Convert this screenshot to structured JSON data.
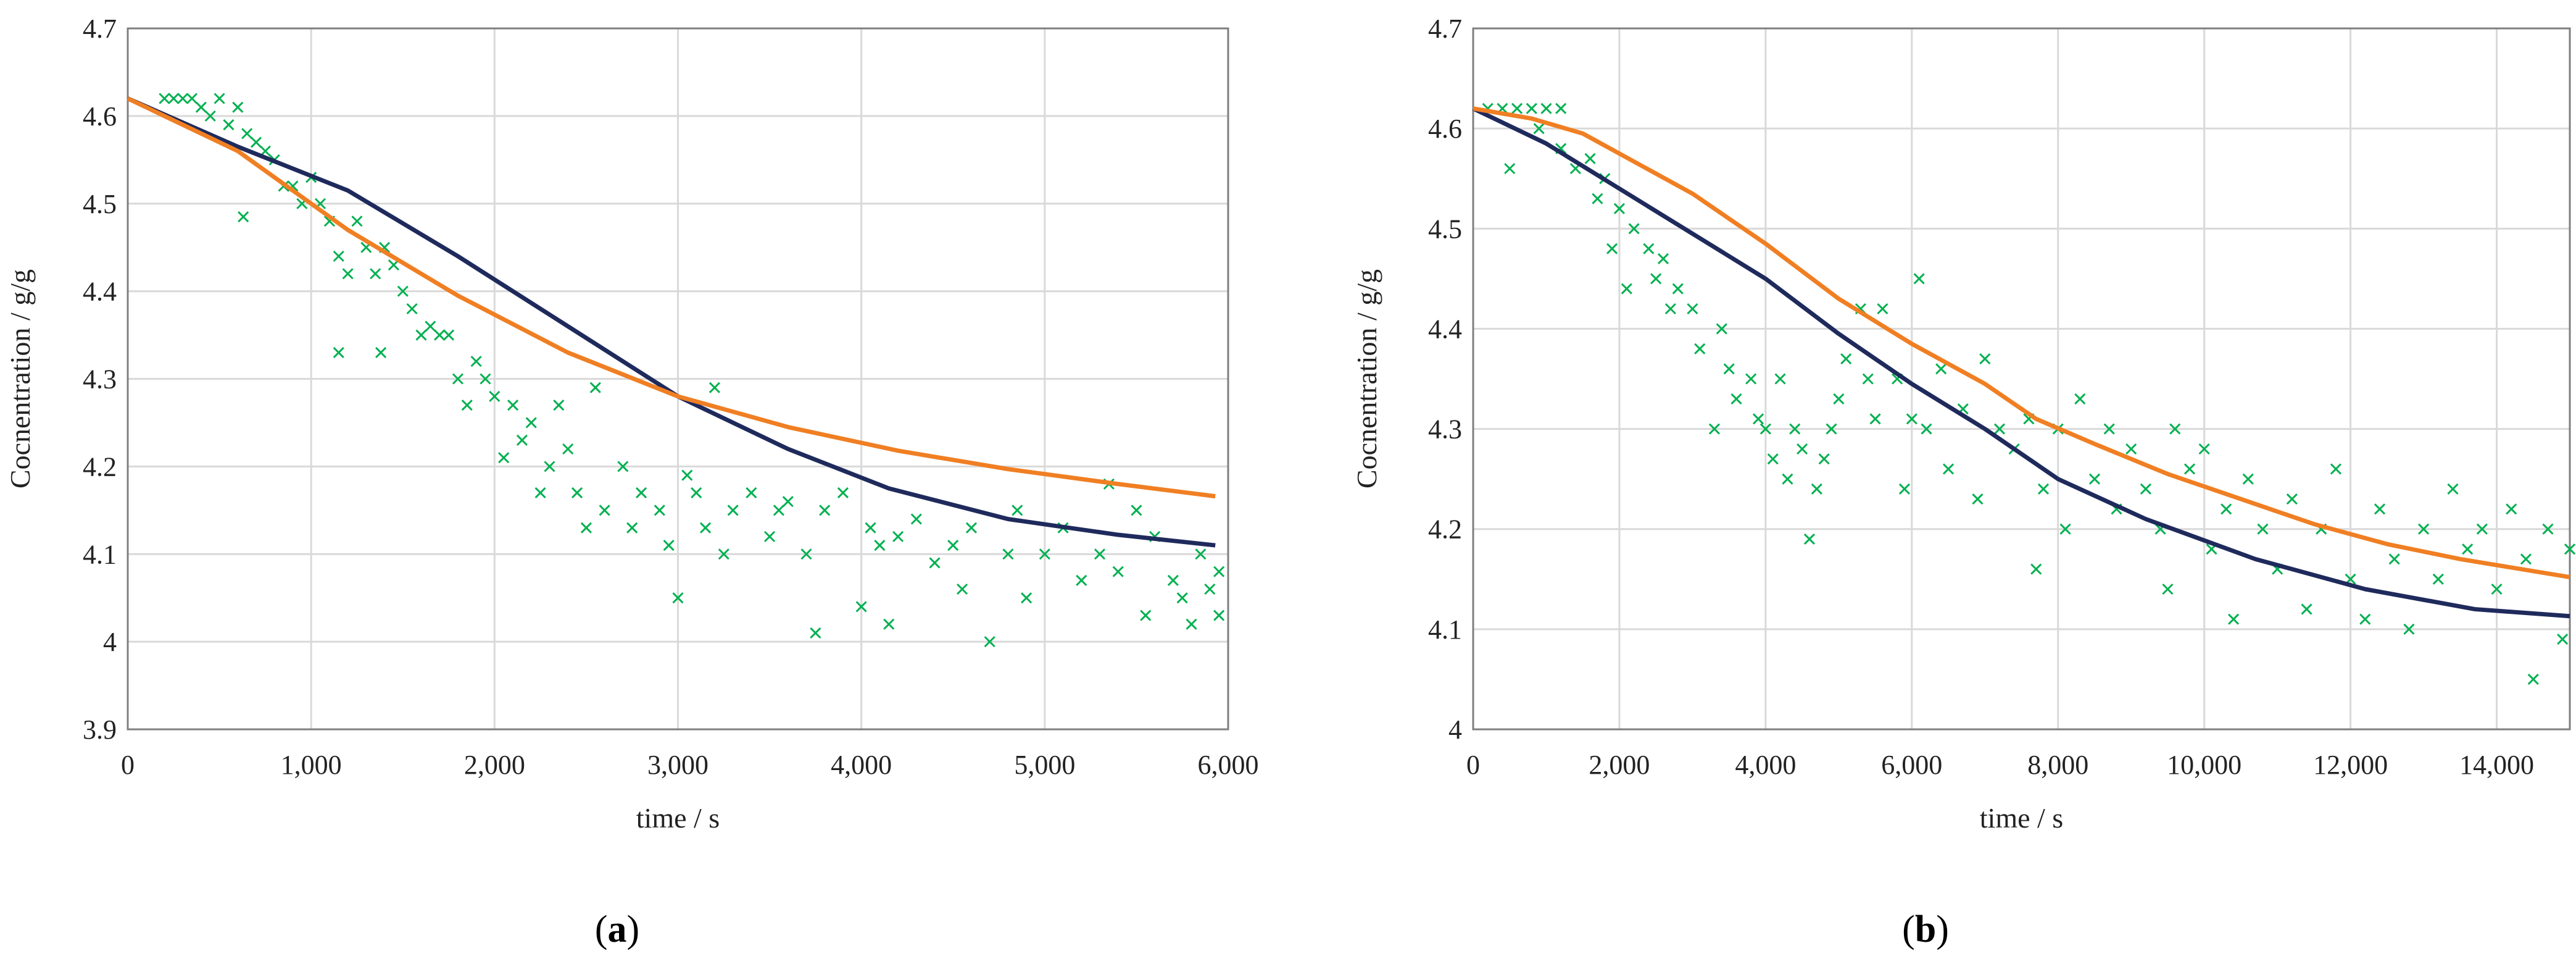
{
  "chart_data": [
    {
      "panel_label": "a",
      "type": "scatter+line",
      "xlabel": "time / s",
      "ylabel": "Cocnentration / g/g",
      "xlim": [
        0,
        6000
      ],
      "ylim": [
        3.9,
        4.7
      ],
      "xticks": [
        0,
        1000,
        2000,
        3000,
        4000,
        5000,
        6000
      ],
      "xtick_labels": [
        "0",
        "1,000",
        "2,000",
        "3,000",
        "4,000",
        "5,000",
        "6,000"
      ],
      "yticks": [
        3.9,
        4.0,
        4.1,
        4.2,
        4.3,
        4.4,
        4.5,
        4.6,
        4.7
      ],
      "ytick_labels": [
        "3.9",
        "4",
        "4.1",
        "4.2",
        "4.3",
        "4.4",
        "4.5",
        "4.6",
        "4.7"
      ],
      "grid": true,
      "series": [
        {
          "kind": "scatter",
          "marker": "x",
          "color": "#00b050",
          "points": [
            [
              200,
              4.62
            ],
            [
              250,
              4.62
            ],
            [
              300,
              4.62
            ],
            [
              350,
              4.62
            ],
            [
              400,
              4.61
            ],
            [
              450,
              4.6
            ],
            [
              500,
              4.62
            ],
            [
              550,
              4.59
            ],
            [
              600,
              4.61
            ],
            [
              630,
              4.485
            ],
            [
              650,
              4.58
            ],
            [
              700,
              4.57
            ],
            [
              750,
              4.56
            ],
            [
              800,
              4.55
            ],
            [
              850,
              4.52
            ],
            [
              900,
              4.52
            ],
            [
              950,
              4.5
            ],
            [
              1000,
              4.53
            ],
            [
              1050,
              4.5
            ],
            [
              1100,
              4.48
            ],
            [
              1150,
              4.33
            ],
            [
              1150,
              4.44
            ],
            [
              1200,
              4.42
            ],
            [
              1250,
              4.48
            ],
            [
              1300,
              4.45
            ],
            [
              1350,
              4.42
            ],
            [
              1380,
              4.33
            ],
            [
              1400,
              4.45
            ],
            [
              1450,
              4.43
            ],
            [
              1500,
              4.4
            ],
            [
              1550,
              4.38
            ],
            [
              1600,
              4.35
            ],
            [
              1650,
              4.36
            ],
            [
              1700,
              4.35
            ],
            [
              1750,
              4.35
            ],
            [
              1800,
              4.3
            ],
            [
              1850,
              4.27
            ],
            [
              1900,
              4.32
            ],
            [
              1950,
              4.3
            ],
            [
              2000,
              4.28
            ],
            [
              2050,
              4.21
            ],
            [
              2100,
              4.27
            ],
            [
              2150,
              4.23
            ],
            [
              2200,
              4.25
            ],
            [
              2250,
              4.17
            ],
            [
              2300,
              4.2
            ],
            [
              2350,
              4.27
            ],
            [
              2400,
              4.22
            ],
            [
              2450,
              4.17
            ],
            [
              2500,
              4.13
            ],
            [
              2550,
              4.29
            ],
            [
              2600,
              4.15
            ],
            [
              2700,
              4.2
            ],
            [
              2750,
              4.13
            ],
            [
              2800,
              4.17
            ],
            [
              2900,
              4.15
            ],
            [
              2950,
              4.11
            ],
            [
              3000,
              4.05
            ],
            [
              3050,
              4.19
            ],
            [
              3100,
              4.17
            ],
            [
              3150,
              4.13
            ],
            [
              3200,
              4.29
            ],
            [
              3250,
              4.1
            ],
            [
              3300,
              4.15
            ],
            [
              3400,
              4.17
            ],
            [
              3500,
              4.12
            ],
            [
              3550,
              4.15
            ],
            [
              3600,
              4.16
            ],
            [
              3700,
              4.1
            ],
            [
              3750,
              4.01
            ],
            [
              3800,
              4.15
            ],
            [
              3900,
              4.17
            ],
            [
              4000,
              4.04
            ],
            [
              4050,
              4.13
            ],
            [
              4100,
              4.11
            ],
            [
              4150,
              4.02
            ],
            [
              4200,
              4.12
            ],
            [
              4300,
              4.14
            ],
            [
              4400,
              4.09
            ],
            [
              4500,
              4.11
            ],
            [
              4550,
              4.06
            ],
            [
              4600,
              4.13
            ],
            [
              4700,
              4.0
            ],
            [
              4800,
              4.1
            ],
            [
              4850,
              4.15
            ],
            [
              4900,
              4.05
            ],
            [
              5000,
              4.1
            ],
            [
              5100,
              4.13
            ],
            [
              5200,
              4.07
            ],
            [
              5300,
              4.1
            ],
            [
              5350,
              4.18
            ],
            [
              5400,
              4.08
            ],
            [
              5500,
              4.15
            ],
            [
              5550,
              4.03
            ],
            [
              5600,
              4.12
            ],
            [
              5700,
              4.07
            ],
            [
              5750,
              4.05
            ],
            [
              5800,
              4.02
            ],
            [
              5850,
              4.1
            ],
            [
              5900,
              4.06
            ],
            [
              5950,
              4.03
            ],
            [
              5950,
              4.08
            ]
          ]
        },
        {
          "kind": "line",
          "color": "#1f2a5c",
          "points": [
            [
              0,
              4.62
            ],
            [
              600,
              4.565
            ],
            [
              1200,
              4.515
            ],
            [
              1800,
              4.44
            ],
            [
              2400,
              4.36
            ],
            [
              3000,
              4.28
            ],
            [
              3600,
              4.22
            ],
            [
              4150,
              4.175
            ],
            [
              4800,
              4.14
            ],
            [
              5400,
              4.122
            ],
            [
              5930,
              4.11
            ]
          ]
        },
        {
          "kind": "line",
          "color": "#f07f23",
          "points": [
            [
              0,
              4.62
            ],
            [
              600,
              4.56
            ],
            [
              1200,
              4.47
            ],
            [
              1800,
              4.395
            ],
            [
              2400,
              4.33
            ],
            [
              3000,
              4.28
            ],
            [
              3600,
              4.245
            ],
            [
              4200,
              4.218
            ],
            [
              4800,
              4.197
            ],
            [
              5400,
              4.18
            ],
            [
              5930,
              4.166
            ]
          ]
        }
      ]
    },
    {
      "panel_label": "b",
      "type": "scatter+line",
      "xlabel": "time / s",
      "ylabel": "Cocnentration / g/g",
      "xlim": [
        0,
        15000
      ],
      "ylim": [
        4.0,
        4.7
      ],
      "xticks": [
        0,
        2000,
        4000,
        6000,
        8000,
        10000,
        12000,
        14000
      ],
      "xtick_labels": [
        "0",
        "2,000",
        "4,000",
        "6,000",
        "8,000",
        "10,000",
        "12,000",
        "14,000"
      ],
      "yticks": [
        4.0,
        4.1,
        4.2,
        4.3,
        4.4,
        4.5,
        4.6,
        4.7
      ],
      "ytick_labels": [
        "4",
        "4.1",
        "4.2",
        "4.3",
        "4.4",
        "4.5",
        "4.6",
        "4.7"
      ],
      "grid": true,
      "series": [
        {
          "kind": "scatter",
          "marker": "x",
          "color": "#00b050",
          "points": [
            [
              200,
              4.62
            ],
            [
              400,
              4.62
            ],
            [
              600,
              4.62
            ],
            [
              800,
              4.62
            ],
            [
              1000,
              4.62
            ],
            [
              1200,
              4.62
            ],
            [
              500,
              4.56
            ],
            [
              900,
              4.6
            ],
            [
              1200,
              4.58
            ],
            [
              1400,
              4.56
            ],
            [
              1600,
              4.57
            ],
            [
              1700,
              4.53
            ],
            [
              1800,
              4.55
            ],
            [
              1900,
              4.48
            ],
            [
              2000,
              4.52
            ],
            [
              2100,
              4.44
            ],
            [
              2200,
              4.5
            ],
            [
              2400,
              4.48
            ],
            [
              2500,
              4.45
            ],
            [
              2600,
              4.47
            ],
            [
              2700,
              4.42
            ],
            [
              2800,
              4.44
            ],
            [
              3000,
              4.42
            ],
            [
              3100,
              4.38
            ],
            [
              3300,
              4.3
            ],
            [
              3400,
              4.4
            ],
            [
              3500,
              4.36
            ],
            [
              3600,
              4.33
            ],
            [
              3800,
              4.35
            ],
            [
              3900,
              4.31
            ],
            [
              4000,
              4.3
            ],
            [
              4100,
              4.27
            ],
            [
              4200,
              4.35
            ],
            [
              4300,
              4.25
            ],
            [
              4400,
              4.3
            ],
            [
              4500,
              4.28
            ],
            [
              4600,
              4.19
            ],
            [
              4700,
              4.24
            ],
            [
              4800,
              4.27
            ],
            [
              4900,
              4.3
            ],
            [
              5000,
              4.33
            ],
            [
              5100,
              4.37
            ],
            [
              5300,
              4.42
            ],
            [
              5400,
              4.35
            ],
            [
              5500,
              4.31
            ],
            [
              5600,
              4.42
            ],
            [
              5800,
              4.35
            ],
            [
              5900,
              4.24
            ],
            [
              6000,
              4.31
            ],
            [
              6100,
              4.45
            ],
            [
              6200,
              4.3
            ],
            [
              6400,
              4.36
            ],
            [
              6500,
              4.26
            ],
            [
              6700,
              4.32
            ],
            [
              6900,
              4.23
            ],
            [
              7000,
              4.37
            ],
            [
              7200,
              4.3
            ],
            [
              7400,
              4.28
            ],
            [
              7600,
              4.31
            ],
            [
              7700,
              4.16
            ],
            [
              7800,
              4.24
            ],
            [
              8000,
              4.3
            ],
            [
              8100,
              4.2
            ],
            [
              8300,
              4.33
            ],
            [
              8500,
              4.25
            ],
            [
              8700,
              4.3
            ],
            [
              8800,
              4.22
            ],
            [
              9000,
              4.28
            ],
            [
              9200,
              4.24
            ],
            [
              9400,
              4.2
            ],
            [
              9500,
              4.14
            ],
            [
              9600,
              4.3
            ],
            [
              9800,
              4.26
            ],
            [
              10000,
              4.28
            ],
            [
              10100,
              4.18
            ],
            [
              10300,
              4.22
            ],
            [
              10400,
              4.11
            ],
            [
              10600,
              4.25
            ],
            [
              10800,
              4.2
            ],
            [
              11000,
              4.16
            ],
            [
              11200,
              4.23
            ],
            [
              11400,
              4.12
            ],
            [
              11600,
              4.2
            ],
            [
              11800,
              4.26
            ],
            [
              12000,
              4.15
            ],
            [
              12200,
              4.11
            ],
            [
              12400,
              4.22
            ],
            [
              12600,
              4.17
            ],
            [
              12800,
              4.1
            ],
            [
              13000,
              4.2
            ],
            [
              13200,
              4.15
            ],
            [
              13400,
              4.24
            ],
            [
              13600,
              4.18
            ],
            [
              13800,
              4.2
            ],
            [
              14000,
              4.14
            ],
            [
              14200,
              4.22
            ],
            [
              14400,
              4.17
            ],
            [
              14500,
              4.05
            ],
            [
              14700,
              4.2
            ],
            [
              14900,
              4.09
            ],
            [
              15000,
              4.18
            ]
          ]
        },
        {
          "kind": "line",
          "color": "#1f2a5c",
          "points": [
            [
              0,
              4.62
            ],
            [
              1000,
              4.585
            ],
            [
              2000,
              4.54
            ],
            [
              3000,
              4.495
            ],
            [
              4000,
              4.45
            ],
            [
              5000,
              4.395
            ],
            [
              6000,
              4.345
            ],
            [
              7000,
              4.3
            ],
            [
              8000,
              4.25
            ],
            [
              9200,
              4.21
            ],
            [
              10700,
              4.17
            ],
            [
              12200,
              4.14
            ],
            [
              13700,
              4.12
            ],
            [
              15000,
              4.113
            ]
          ]
        },
        {
          "kind": "line",
          "color": "#f07f23",
          "points": [
            [
              0,
              4.62
            ],
            [
              800,
              4.61
            ],
            [
              1500,
              4.595
            ],
            [
              2000,
              4.575
            ],
            [
              3000,
              4.535
            ],
            [
              4000,
              4.485
            ],
            [
              5000,
              4.43
            ],
            [
              6000,
              4.385
            ],
            [
              7000,
              4.345
            ],
            [
              7700,
              4.31
            ],
            [
              8500,
              4.285
            ],
            [
              9500,
              4.255
            ],
            [
              10500,
              4.23
            ],
            [
              11500,
              4.205
            ],
            [
              12500,
              4.185
            ],
            [
              13500,
              4.17
            ],
            [
              15000,
              4.152
            ]
          ]
        }
      ]
    }
  ]
}
